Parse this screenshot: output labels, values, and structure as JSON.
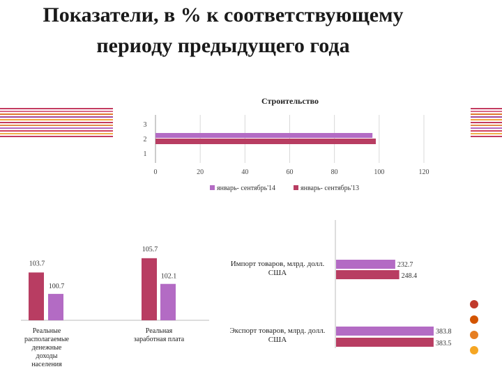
{
  "title": "Показатели, в % к соответствующему периоду предыдущего года",
  "title_lines": [
    "Показатели, в % к соответствующему",
    "периоду предыдущего года"
  ],
  "colors": {
    "series_2014": "#b36bc4",
    "series_2013": "#b83d62",
    "stripes": [
      "#c33a5f",
      "#d96a8a",
      "#e07a2e",
      "#a4489a",
      "#f2a33c",
      "#c33a5f",
      "#e38a4a",
      "#b46ac1",
      "#d3425f",
      "#f0b04a",
      "#c33a5f"
    ],
    "dots": [
      "#c0392b",
      "#d35400",
      "#e67e22",
      "#f5a623"
    ]
  },
  "chart_data": [
    {
      "type": "bar",
      "orientation": "horizontal",
      "title": "Строительство",
      "categories": [
        "1",
        "2",
        "3"
      ],
      "series": [
        {
          "name": "январь- сентябрь'14",
          "values": [
            null,
            97,
            null
          ]
        },
        {
          "name": "январь- сентябрь'13",
          "values": [
            null,
            98.5,
            null
          ]
        }
      ],
      "xlim": [
        0,
        120
      ],
      "xticks": [
        0,
        20,
        40,
        60,
        80,
        100,
        120
      ],
      "grid": true,
      "legend": "bottom"
    },
    {
      "type": "bar",
      "categories": [
        "Реальные располагаемые денежные доходы населения",
        "Реальная заработная плата"
      ],
      "series": [
        {
          "name": "январь- сентябрь'13",
          "values": [
            103.7,
            105.7
          ]
        },
        {
          "name": "январь- сентябрь'14",
          "values": [
            100.7,
            102.1
          ]
        }
      ],
      "data_labels": [
        "103.7",
        "100.7",
        "105.7",
        "102.1"
      ]
    },
    {
      "type": "bar",
      "orientation": "horizontal",
      "categories": [
        "Импорт товаров, млрд. долл. США",
        "Экспорт товаров, млрд. долл. США"
      ],
      "series": [
        {
          "name": "январь- сентябрь'14",
          "values": [
            232.7,
            383.8
          ]
        },
        {
          "name": "январь- сентябрь'13",
          "values": [
            248.4,
            383.5
          ]
        }
      ],
      "data_labels": [
        "232.7",
        "248.4",
        "383.8",
        "383.5"
      ]
    }
  ]
}
